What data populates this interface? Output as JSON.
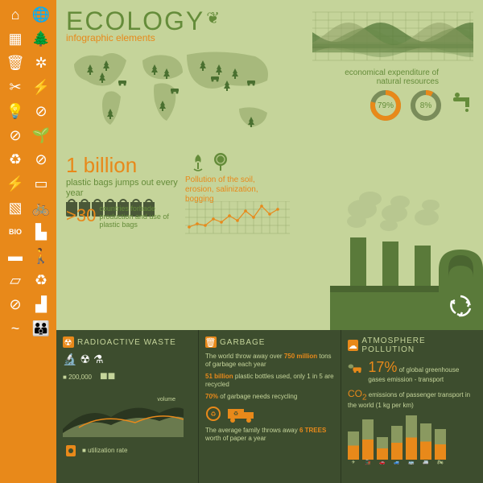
{
  "title": "ECOLOGY",
  "subtitle": "infographic elements",
  "sidebar": {
    "iconcolor": "#ffffff",
    "bg": "#e8891a",
    "icons": [
      "home",
      "globe",
      "solar",
      "tree",
      "trash",
      "wind",
      "scissor",
      "antenna",
      "bulb",
      "nofire",
      "noplant",
      "sprout",
      "recycle",
      "nosmoking",
      "power",
      "book",
      "truck",
      "bike",
      "bio",
      "city",
      "car",
      "hiker",
      "bag",
      "recycle2",
      "nosmoke2",
      "factory",
      "birds",
      "family"
    ]
  },
  "upper": {
    "bg": "#c5d49a",
    "map": {
      "fill": "#a7b97c",
      "trees": "#4a7030",
      "cars": "#4a7030"
    },
    "wavechart": {
      "series": [
        {
          "color": "#4a7030",
          "opacity": 0.7
        },
        {
          "color": "#6a8a4a",
          "opacity": 0.6
        },
        {
          "color": "#8a9960",
          "opacity": 0.5
        }
      ],
      "grid_color": "#97aa6e",
      "points": 12
    },
    "econ_text": "economical expenditure of natural resources",
    "donuts": [
      {
        "pct": 79,
        "label": "79%",
        "fill": "#e8891a",
        "track": "#7a8c5a"
      },
      {
        "pct": 8,
        "label": "8%",
        "fill": "#e8891a",
        "track": "#7a8c5a"
      }
    ],
    "billion": {
      "num": "1 billion",
      "sub": "plastic bags jumps out every year",
      "bags": 7,
      "bag_color": "#4a5838"
    },
    "thirty": {
      "num": ">30",
      "txt": "countries forbade production and use of plastic bags"
    },
    "pollution_text": "Pollution of the soil, erosion, salinization, bogging",
    "linechart": {
      "values": [
        8,
        12,
        10,
        18,
        14,
        22,
        16,
        28,
        20,
        34,
        24,
        30
      ],
      "color": "#e8891a",
      "marker_size": 3,
      "grid_color": "#97aa6e",
      "ymax": 40
    },
    "factory": {
      "body_color": "#5a7a3a",
      "dark_color": "#4a6530",
      "smoke_color": "#b5c48e",
      "recycle_color": "#ffffff"
    }
  },
  "lower": {
    "bg": "#3d4d2e",
    "panels": {
      "radio": {
        "title": "RADIOACTIVE WASTE",
        "icons": [
          "🔬",
          "☢",
          "⚗"
        ],
        "numbers": {
          "small": "200,000",
          "big": "■"
        },
        "labels": {
          "volume": "volume",
          "util": "utilization rate"
        },
        "area_colors": {
          "dark": "#2a3620",
          "mid": "#6a7a4e",
          "accent": "#e8891a"
        }
      },
      "garbage": {
        "title": "GARBAGE",
        "lines": [
          {
            "pre": "The world throw away over ",
            "num": "750 million",
            "post": " tons of garbage each year"
          },
          {
            "pre": "",
            "num": "51 billion",
            "post": " plastic bottles used, only 1 in 5 are recycled"
          },
          {
            "pre": "",
            "num": "70%",
            "post": " of garbage needs recycling"
          },
          {
            "pre": "The average family throws away ",
            "num": "6 TREES",
            "post": " worth of paper a year"
          }
        ],
        "truck_color": "#e8891a"
      },
      "atmo": {
        "title": "ATMOSPHERE POLLUTION",
        "stat1": {
          "num": "17%",
          "txt": "of global greenhouse gases emission - transport"
        },
        "stat2": {
          "pre": "CO",
          "sub": "2",
          "txt": " emissions of passenger transport in the world (1 kg per km)"
        },
        "bars": {
          "values": [
            35,
            50,
            28,
            42,
            55,
            45,
            38
          ],
          "labels": [
            "✈",
            "🚂",
            "🚗",
            "🚙",
            "🚌",
            "🚐",
            "🏍"
          ],
          "top_color": "#8a9960",
          "bottom_color": "#e8891a"
        }
      }
    }
  }
}
